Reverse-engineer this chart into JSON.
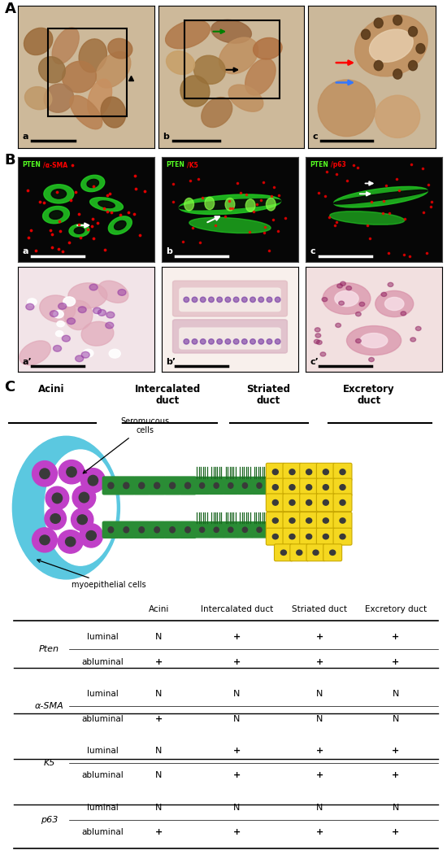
{
  "panel_A_label": "A",
  "panel_B_label": "B",
  "panel_C_label": "C",
  "panel_B_titles": [
    "PTEN/α-SMA",
    "PTEN/K5",
    "PTEN/p63"
  ],
  "diagram": {
    "col_headers": [
      "Acini",
      "Intercalated\nduct",
      "Striated\nduct",
      "Excretory\nduct"
    ],
    "seromucous": "Seromucous\ncells",
    "myoepithelial": "myoepithelial cells"
  },
  "table": {
    "row_groups": [
      "Pten",
      "α-SMA",
      "K5",
      "p63"
    ],
    "row_labels": [
      "luminal",
      "abluminal"
    ],
    "col_headers": [
      "Acini",
      "Intercalated duct",
      "Striated duct",
      "Excretory duct"
    ],
    "data": {
      "Pten": {
        "luminal": [
          "N",
          "+",
          "+",
          "+"
        ],
        "abluminal": [
          "+",
          "+",
          "+",
          "+"
        ]
      },
      "α-SMA": {
        "luminal": [
          "N",
          "N",
          "N",
          "N"
        ],
        "abluminal": [
          "+",
          "N",
          "N",
          "N"
        ]
      },
      "K5": {
        "luminal": [
          "N",
          "+",
          "+",
          "+"
        ],
        "abluminal": [
          "N",
          "+",
          "+",
          "+"
        ]
      },
      "p63": {
        "luminal": [
          "N",
          "N",
          "N",
          "N"
        ],
        "abluminal": [
          "+",
          "+",
          "+",
          "+"
        ]
      }
    }
  },
  "colors": {
    "background": "#ffffff",
    "cyan": "#5bc8e0",
    "purple": "#c040c8",
    "green": "#2a8c35",
    "yellow": "#f5d820",
    "dark_yellow": "#c8a800",
    "dark_nucleus": "#3a3a3a",
    "white_cell": "#e8e0f0"
  }
}
